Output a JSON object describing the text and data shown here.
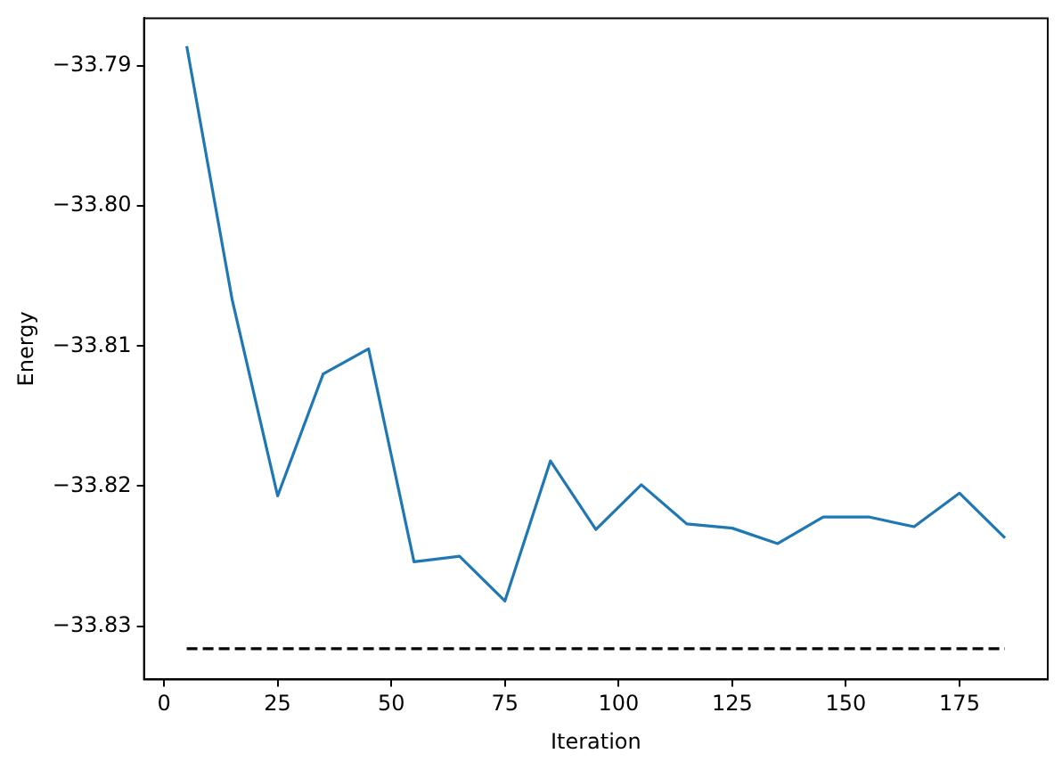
{
  "chart_data": {
    "type": "line",
    "xlabel": "Iteration",
    "ylabel": "Energy",
    "x": [
      5,
      15,
      25,
      35,
      45,
      55,
      65,
      75,
      85,
      95,
      105,
      115,
      125,
      135,
      145,
      155,
      165,
      175,
      185
    ],
    "series": [
      {
        "color": "#1f77b4",
        "values": [
          -33.7886,
          -33.8067,
          -33.8207,
          -33.812,
          -33.8102,
          -33.8254,
          -33.825,
          -33.8282,
          -33.8182,
          -33.8231,
          -33.8199,
          -33.8227,
          -33.823,
          -33.8241,
          -33.8222,
          -33.8222,
          -33.8229,
          -33.8205,
          -33.8237
        ]
      },
      {
        "type": "line",
        "x": [
          5,
          185
        ],
        "color": "#000000",
        "line_style": "dashed",
        "values": [
          -33.8316,
          -33.8316
        ]
      }
    ],
    "xlim": [
      -4.4,
      194.4
    ],
    "xticks": [
      0,
      25,
      50,
      75,
      100,
      125,
      150,
      175
    ],
    "ylim": [
      -33.8338,
      -33.7866
    ],
    "yticks": [
      {
        "value": -33.79,
        "label": "−33.79"
      },
      {
        "value": -33.8,
        "label": "−33.80"
      },
      {
        "value": -33.81,
        "label": "−33.81"
      },
      {
        "value": -33.82,
        "label": "−33.82"
      },
      {
        "value": -33.83,
        "label": "−33.83"
      }
    ],
    "grid": false,
    "legend": false,
    "marker": "none"
  }
}
